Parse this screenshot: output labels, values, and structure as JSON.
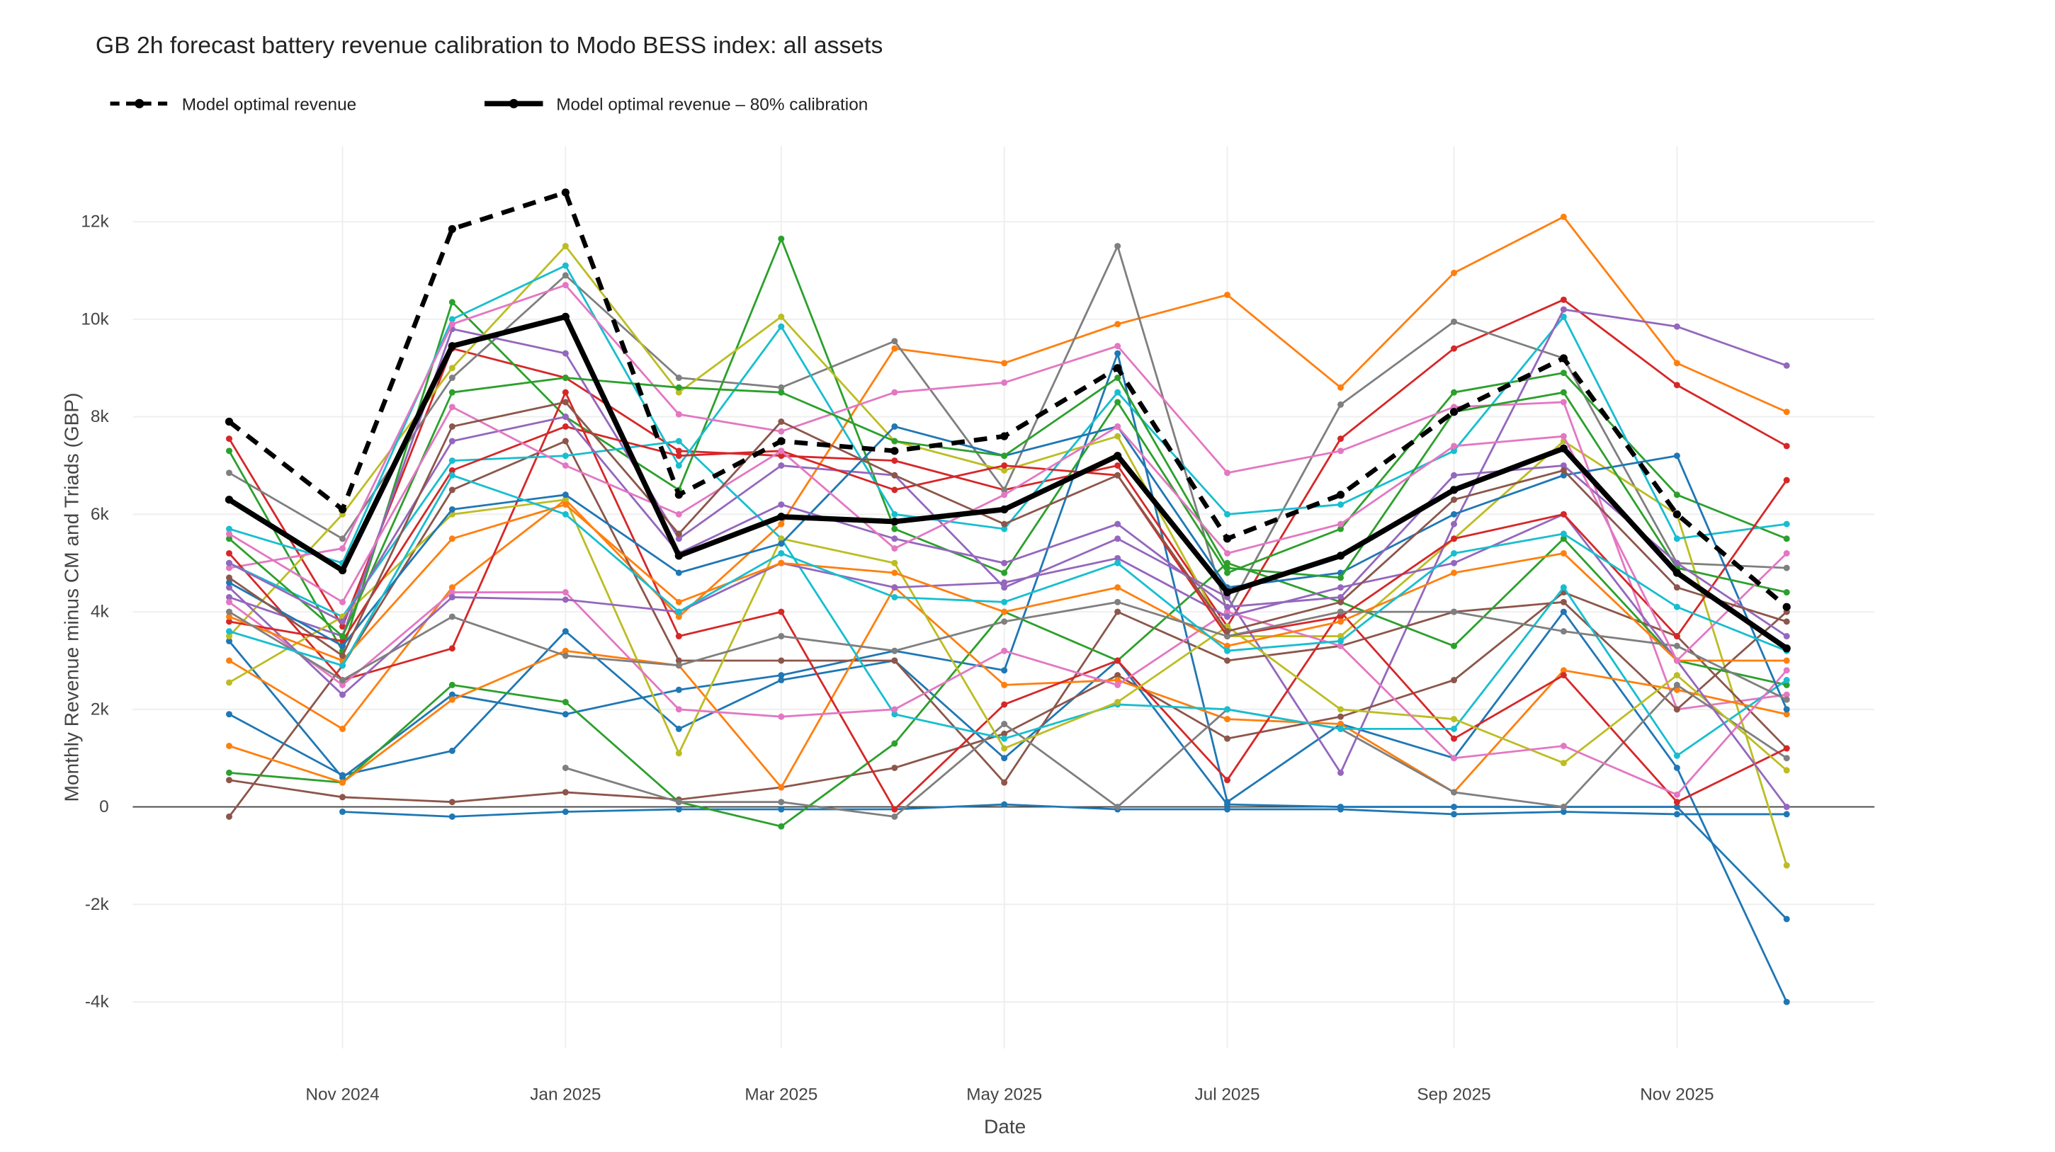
{
  "chart_data": {
    "type": "line",
    "title": "GB 2h forecast battery revenue calibration to Modo BESS index: all assets",
    "xlabel": "Date",
    "ylabel": "Monthly Revenue minus CM and Triads (GBP)",
    "x": [
      "2024-10-01",
      "2024-11-01",
      "2024-12-01",
      "2025-01-01",
      "2025-02-01",
      "2025-03-01",
      "2025-04-01",
      "2025-05-01",
      "2025-06-01",
      "2025-07-01",
      "2025-08-01",
      "2025-09-01",
      "2025-10-01",
      "2025-11-01",
      "2025-12-01"
    ],
    "x_ticks": [
      {
        "date": "2024-11-01",
        "label": "Nov 2024"
      },
      {
        "date": "2025-01-01",
        "label": "Jan 2025"
      },
      {
        "date": "2025-03-01",
        "label": "Mar 2025"
      },
      {
        "date": "2025-05-01",
        "label": "May 2025"
      },
      {
        "date": "2025-07-01",
        "label": "Jul 2025"
      },
      {
        "date": "2025-09-01",
        "label": "Sep 2025"
      },
      {
        "date": "2025-11-01",
        "label": "Nov 2025"
      }
    ],
    "y_ticks": [
      {
        "value": -4000,
        "label": "-4k"
      },
      {
        "value": -2000,
        "label": "-2k"
      },
      {
        "value": 0,
        "label": "0"
      },
      {
        "value": 2000,
        "label": "2k"
      },
      {
        "value": 4000,
        "label": "4k"
      },
      {
        "value": 6000,
        "label": "6k"
      },
      {
        "value": 8000,
        "label": "8k"
      },
      {
        "value": 10000,
        "label": "10k"
      },
      {
        "value": 12000,
        "label": "12k"
      }
    ],
    "ylim": [
      -5000,
      13500
    ],
    "grid": true,
    "legend_position": "top-left",
    "highlight_series": [
      {
        "name": "Model optimal revenue",
        "style": "dashed",
        "color": "#000000",
        "values": [
          7900,
          6100,
          11850,
          12600,
          6400,
          7500,
          7300,
          7600,
          9000,
          5500,
          6400,
          8100,
          9200,
          6000,
          4100
        ]
      },
      {
        "name": "Model optimal revenue – 80% calibration",
        "style": "solid",
        "color": "#000000",
        "values": [
          6300,
          4850,
          9450,
          10050,
          5150,
          5950,
          5850,
          6100,
          7200,
          4400,
          5150,
          6500,
          7350,
          4800,
          3250
        ]
      }
    ],
    "asset_series": [
      {
        "color": "#1f77b4",
        "values": [
          null,
          -100,
          -200,
          -100,
          -50,
          -50,
          -50,
          50,
          -50,
          -50,
          -50,
          -150,
          -100,
          -150,
          -150
        ]
      },
      {
        "color": "#1f77b4",
        "values": [
          3400,
          600,
          2300,
          1900,
          2400,
          2700,
          3200,
          2800,
          9300,
          100,
          1700,
          1000,
          4000,
          800,
          -4000
        ]
      },
      {
        "color": "#1f77b4",
        "values": [
          1900,
          650,
          1150,
          3600,
          1600,
          2600,
          3000,
          1000,
          3000,
          50,
          0,
          0,
          0,
          0,
          -2300
        ]
      },
      {
        "color": "#ff7f0e",
        "values": [
          3000,
          1600,
          4500,
          6300,
          3900,
          5800,
          9400,
          9100,
          9900,
          10500,
          8600,
          10950,
          12100,
          9100,
          8100
        ]
      },
      {
        "color": "#d62728",
        "values": [
          7550,
          3700,
          9400,
          8800,
          7300,
          7200,
          7100,
          6500,
          7000,
          3700,
          7550,
          9400,
          10400,
          8650,
          7400
        ]
      },
      {
        "color": "#7f7f7f",
        "values": [
          6850,
          5500,
          8800,
          10900,
          8800,
          8600,
          9550,
          6500,
          11500,
          4000,
          8250,
          9950,
          9200,
          5000,
          4900
        ]
      },
      {
        "color": "#2ca02c",
        "values": [
          7300,
          3200,
          10350,
          8000,
          6500,
          11650,
          5700,
          4800,
          8300,
          4800,
          5700,
          8500,
          8900,
          6400,
          5500
        ]
      },
      {
        "color": "#bcbd22",
        "values": [
          3500,
          6000,
          9000,
          11500,
          8500,
          10050,
          7500,
          6900,
          7600,
          3500,
          3500,
          5500,
          7500,
          6000,
          -1200
        ]
      },
      {
        "color": "#17becf",
        "values": [
          5700,
          5000,
          10000,
          11100,
          7000,
          9850,
          6000,
          5700,
          8500,
          6000,
          6200,
          7300,
          10050,
          5500,
          5800
        ]
      },
      {
        "color": "#9467bd",
        "values": [
          4300,
          3500,
          9800,
          9300,
          5500,
          7000,
          6800,
          4500,
          5500,
          4300,
          700,
          5800,
          10200,
          9850,
          9050
        ]
      },
      {
        "color": "#e377c2",
        "values": [
          4900,
          5300,
          9900,
          10700,
          8050,
          7700,
          8500,
          8700,
          9450,
          6850,
          7300,
          8200,
          8300,
          2000,
          2300
        ]
      },
      {
        "color": "#8c564b",
        "values": [
          550,
          200,
          100,
          300,
          150,
          400,
          800,
          1500,
          2700,
          1400,
          1850,
          2600,
          4400,
          3500,
          1200
        ]
      },
      {
        "color": "#8c564b",
        "values": [
          -200,
          2900,
          6500,
          7500,
          3000,
          3000,
          3000,
          500,
          4000,
          3000,
          3300,
          4000,
          4200,
          2000,
          4000
        ]
      },
      {
        "color": "#2ca02c",
        "values": [
          700,
          500,
          2500,
          2150,
          100,
          -400,
          1300,
          4000,
          3000,
          5000,
          4200,
          3300,
          5500,
          3000,
          2500
        ]
      },
      {
        "color": "#ff7f0e",
        "values": [
          1250,
          500,
          2200,
          3200,
          2900,
          400,
          4500,
          2500,
          2600,
          1800,
          1700,
          300,
          2800,
          2400,
          1900
        ]
      },
      {
        "color": "#7f7f7f",
        "values": [
          null,
          null,
          null,
          800,
          100,
          100,
          -200,
          1700,
          0,
          2000,
          1600,
          300,
          0,
          2500,
          1000
        ]
      },
      {
        "color": "#d62728",
        "values": [
          5200,
          2600,
          3250,
          8500,
          3500,
          4000,
          -50,
          2100,
          3000,
          550,
          4000,
          1400,
          2700,
          100,
          1200
        ]
      },
      {
        "color": "#17becf",
        "values": [
          5000,
          3900,
          7100,
          7200,
          7500,
          5500,
          1900,
          1400,
          2100,
          2000,
          1600,
          1600,
          4500,
          1050,
          2600
        ]
      },
      {
        "color": "#bcbd22",
        "values": [
          2550,
          3900,
          6000,
          6300,
          1100,
          5500,
          5000,
          1200,
          2150,
          3700,
          2000,
          1800,
          900,
          2700,
          750
        ]
      },
      {
        "color": "#e377c2",
        "values": [
          4200,
          2500,
          4400,
          4400,
          2000,
          1850,
          2000,
          3200,
          2500,
          4000,
          3300,
          1000,
          1250,
          250,
          2800
        ]
      },
      {
        "color": "#9467bd",
        "values": [
          4500,
          2300,
          4300,
          4250,
          4000,
          5000,
          4500,
          4600,
          5100,
          3900,
          4500,
          5000,
          6000,
          3000,
          0
        ]
      },
      {
        "color": "#d62728",
        "values": [
          3800,
          3400,
          6900,
          7800,
          7200,
          7300,
          6500,
          7000,
          6800,
          3500,
          3900,
          5500,
          6000,
          3500,
          6700
        ]
      },
      {
        "color": "#1f77b4",
        "values": [
          4600,
          3300,
          6100,
          6400,
          4800,
          5400,
          7800,
          7200,
          7800,
          4500,
          4800,
          6000,
          6800,
          7200,
          2000
        ]
      },
      {
        "color": "#2ca02c",
        "values": [
          5500,
          3500,
          8500,
          8800,
          8600,
          8500,
          7500,
          7200,
          8800,
          4900,
          4700,
          8100,
          8500,
          4900,
          4400
        ]
      },
      {
        "color": "#ff7f0e",
        "values": [
          3900,
          3000,
          5500,
          6200,
          4200,
          5000,
          4800,
          4000,
          4500,
          3300,
          3800,
          4800,
          5200,
          3000,
          3000
        ]
      },
      {
        "color": "#7f7f7f",
        "values": [
          4000,
          2600,
          3900,
          3100,
          2900,
          3500,
          3200,
          3800,
          4200,
          3500,
          4000,
          4000,
          3600,
          3300,
          2200
        ]
      },
      {
        "color": "#9467bd",
        "values": [
          5000,
          3800,
          7500,
          8000,
          5200,
          6200,
          5500,
          5000,
          5800,
          4100,
          4300,
          6800,
          7000,
          5000,
          3500
        ]
      },
      {
        "color": "#e377c2",
        "values": [
          5600,
          4200,
          8200,
          7000,
          6000,
          7300,
          5300,
          6400,
          7800,
          5200,
          5800,
          7400,
          7600,
          3000,
          5200
        ]
      },
      {
        "color": "#17becf",
        "values": [
          3600,
          2900,
          6800,
          6000,
          4000,
          5200,
          4300,
          4200,
          5000,
          3200,
          3400,
          5200,
          5600,
          4100,
          3200
        ]
      },
      {
        "color": "#8c564b",
        "values": [
          4700,
          3100,
          7800,
          8300,
          5600,
          7900,
          6800,
          5800,
          6800,
          3600,
          4200,
          6300,
          6900,
          4500,
          3800
        ]
      }
    ]
  }
}
